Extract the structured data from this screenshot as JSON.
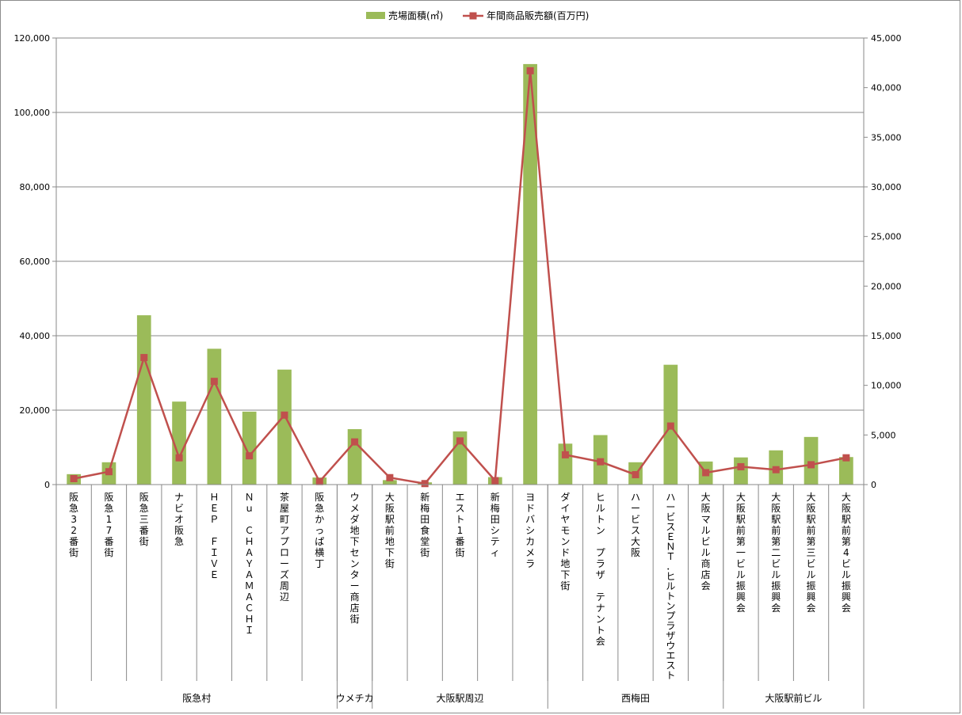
{
  "chart_data": {
    "type": "bar",
    "combo": "bar+line (dual axis)",
    "legend_position": "top",
    "grid": true,
    "categories": [
      "阪急32番街",
      "阪急17番街",
      "阪急三番街",
      "ナビオ阪急",
      "ＨＥＰ　ＦＩＶＥ",
      "Ｎｕ　ＣＨＡＹＡＭＡＣＨＩ",
      "茶屋町アプローズ周辺",
      "阪急かっぱ横丁",
      "ウメダ地下センター商店街",
      "大阪駅前地下街",
      "新梅田食堂街",
      "エスト1番街",
      "新梅田シティ",
      "ヨドバシカメラ",
      "ダイヤモンド地下街",
      "ヒルトン　プラザ　テナント会",
      "ハービス大阪",
      "ハービスＥＮＴ．ヒルトンプラザウエスト",
      "大阪マルビル商店会",
      "大阪駅前第一ビル振興会",
      "大阪駅前第二ビル振興会",
      "大阪駅前第三ビル振興会",
      "大阪駅前第4ビル振興会"
    ],
    "groups": [
      {
        "label": "阪急村",
        "start": 0,
        "end": 7
      },
      {
        "label": "ウメチカ",
        "start": 8,
        "end": 8
      },
      {
        "label": "大阪駅周辺",
        "start": 9,
        "end": 13
      },
      {
        "label": "西梅田",
        "start": 14,
        "end": 18
      },
      {
        "label": "大阪駅前ビル",
        "start": 19,
        "end": 22
      }
    ],
    "series": [
      {
        "name": "売場面積(㎡)",
        "type": "bar",
        "axis": "left",
        "color": "#9bbb59",
        "values": [
          2800,
          6000,
          45500,
          22300,
          36500,
          19600,
          30900,
          1900,
          14900,
          1200,
          600,
          14300,
          2000,
          113000,
          11000,
          13300,
          6000,
          32200,
          6200,
          7300,
          9200,
          12800,
          7400
        ]
      },
      {
        "name": "年間商品販売額(百万円)",
        "type": "line",
        "axis": "right",
        "color": "#c0504d",
        "values": [
          600,
          1300,
          12800,
          2700,
          10400,
          2900,
          7000,
          300,
          4300,
          700,
          100,
          4400,
          400,
          41700,
          3000,
          2300,
          1000,
          5900,
          1200,
          1800,
          1500,
          2000,
          2700
        ]
      }
    ],
    "y_left": {
      "min": 0,
      "max": 120000,
      "step": 20000
    },
    "y_right": {
      "min": 0,
      "max": 45000,
      "step": 5000
    }
  }
}
